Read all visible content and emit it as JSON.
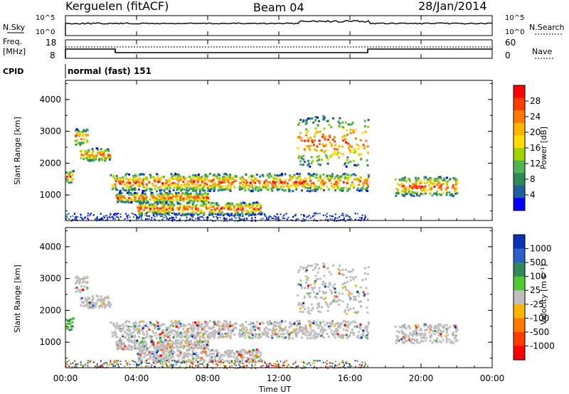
{
  "header": {
    "station": "Kerguelen (fitACF)",
    "beam": "Beam 04",
    "date": "28/Jan/2014"
  },
  "top_strip": {
    "left_label": "N.Sky",
    "right_label": "N.Search",
    "left_ticks": [
      "10^5",
      "10^0"
    ],
    "right_ticks": [
      "10^5",
      "10^0"
    ],
    "freq_label_1": "Freq.",
    "freq_label_2": "[MHz]",
    "freq_ticks": [
      "18",
      "8"
    ],
    "nave_label": "Nave",
    "nave_ticks": [
      "60",
      "0"
    ],
    "cpid_label": "CPID",
    "cpid_value": "normal (fast) 151"
  },
  "axes": {
    "xlabel": "Time UT",
    "x_ticks": [
      "00:00",
      "04:00",
      "08:00",
      "12:00",
      "16:00",
      "20:00",
      "00:00"
    ],
    "ylabel": "Slant Range [km]",
    "y_ticks": [
      "4000",
      "3000",
      "2000",
      "1000"
    ]
  },
  "power_scale": {
    "label": "Power [dB]",
    "ticks": [
      "28",
      "24",
      "20",
      "16",
      "12",
      "8",
      "4"
    ],
    "colors": [
      "#ff0000",
      "#ff3c00",
      "#ff7800",
      "#ffb400",
      "#ffdc00",
      "#a0d200",
      "#50b450",
      "#2e8b57",
      "#1e5fa0",
      "#0000ff"
    ]
  },
  "velocity_scale": {
    "label": "Velocity [m s⁻¹]",
    "ticks": [
      "1000",
      "500",
      "100",
      "25",
      "-25",
      "-100",
      "-500",
      "-1000"
    ],
    "colors": [
      "#0a32b4",
      "#2e5fc8",
      "#2e8b57",
      "#50c832",
      "#bebebe",
      "#ffb400",
      "#ff7800",
      "#ff3c00",
      "#ff0000"
    ]
  },
  "chart_data": {
    "type": "heatmap",
    "x_range_hours": [
      0,
      24
    ],
    "y_range_km": [
      200,
      4600
    ],
    "freq_mhz": [
      {
        "t": 0.0,
        "f": 13
      },
      {
        "t": 2.8,
        "f": 13
      },
      {
        "t": 2.8,
        "f": 10.5
      },
      {
        "t": 17.0,
        "f": 10.5
      },
      {
        "t": 17.0,
        "f": 13
      },
      {
        "t": 24.0,
        "f": 13
      }
    ],
    "scatter_bands": [
      {
        "t0": 0.0,
        "t1": 0.4,
        "r0": 1400,
        "r1": 1800
      },
      {
        "t0": 0.5,
        "t1": 1.2,
        "r0": 2600,
        "r1": 3100
      },
      {
        "t0": 0.8,
        "t1": 2.5,
        "r0": 2100,
        "r1": 2500
      },
      {
        "t0": 2.5,
        "t1": 17.0,
        "r0": 1150,
        "r1": 1700
      },
      {
        "t0": 2.8,
        "t1": 8.0,
        "r0": 800,
        "r1": 1100
      },
      {
        "t0": 4.0,
        "t1": 11.0,
        "r0": 400,
        "r1": 800
      },
      {
        "t0": 13.0,
        "t1": 17.0,
        "r0": 1900,
        "r1": 3500
      },
      {
        "t0": 18.5,
        "t1": 22.0,
        "r0": 1000,
        "r1": 1600
      }
    ]
  }
}
